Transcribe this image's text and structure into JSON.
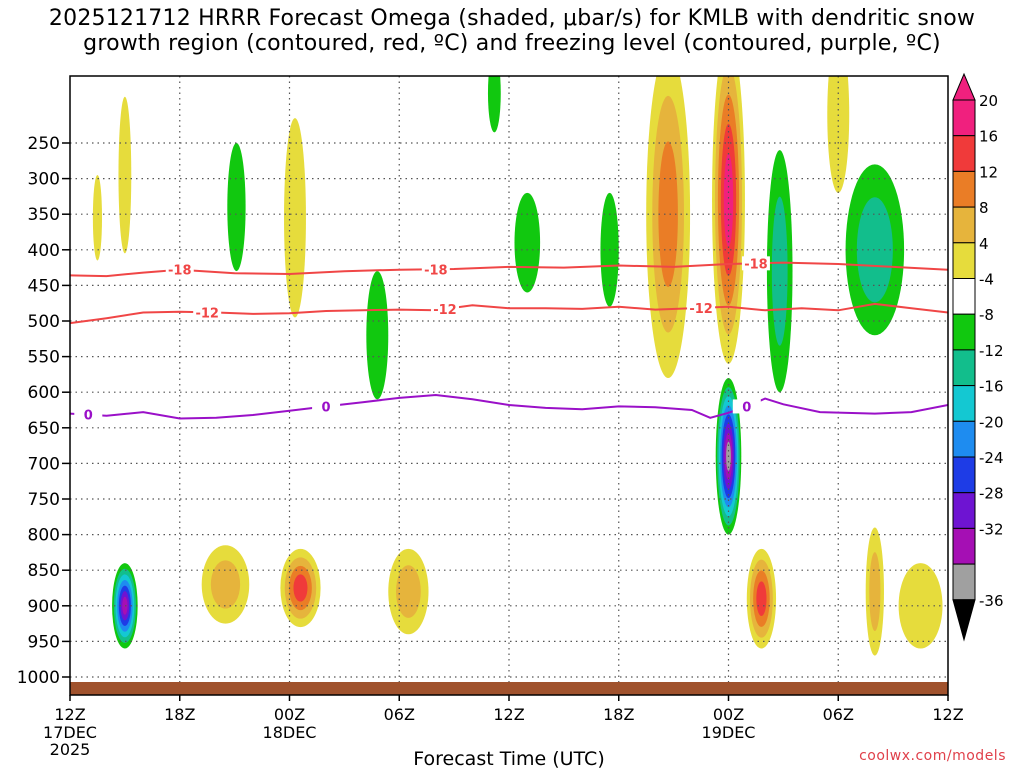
{
  "title_line1": "2025121712 HRRR Forecast Omega (shaded, μbar/s) for KMLB with dendritic snow",
  "title_line2": "growth region (contoured, red, ºC) and freezing level (contoured, purple, ºC)",
  "credit": "coolwx.com/models",
  "chart_data": {
    "type": "time-height cross section",
    "title": "2025121712 HRRR Forecast Omega (shaded, μbar/s) for KMLB with dendritic snow growth region (contoured, red, ºC) and freezing level (contoured, purple, ºC)",
    "xlabel": "Forecast Time (UTC)",
    "ylabel": "",
    "x_range_hours": [
      0,
      48
    ],
    "y_range_hPa": [
      1030,
      200
    ],
    "x_ticks": [
      {
        "h": 0,
        "label": "12Z",
        "sub1": "17DEC",
        "sub2": "2025"
      },
      {
        "h": 6,
        "label": "18Z",
        "sub1": "",
        "sub2": ""
      },
      {
        "h": 12,
        "label": "00Z",
        "sub1": "18DEC",
        "sub2": ""
      },
      {
        "h": 18,
        "label": "06Z",
        "sub1": "",
        "sub2": ""
      },
      {
        "h": 24,
        "label": "12Z",
        "sub1": "",
        "sub2": ""
      },
      {
        "h": 30,
        "label": "18Z",
        "sub1": "",
        "sub2": ""
      },
      {
        "h": 36,
        "label": "00Z",
        "sub1": "19DEC",
        "sub2": ""
      },
      {
        "h": 42,
        "label": "06Z",
        "sub1": "",
        "sub2": ""
      },
      {
        "h": 48,
        "label": "12Z",
        "sub1": "",
        "sub2": ""
      }
    ],
    "y_ticks": [
      {
        "p": 250,
        "label": "250"
      },
      {
        "p": 300,
        "label": "300"
      },
      {
        "p": 350,
        "label": "350"
      },
      {
        "p": 400,
        "label": "400"
      },
      {
        "p": 450,
        "label": "450"
      },
      {
        "p": 500,
        "label": "500"
      },
      {
        "p": 550,
        "label": "550"
      },
      {
        "p": 600,
        "label": "600"
      },
      {
        "p": 650,
        "label": "650"
      },
      {
        "p": 700,
        "label": "700"
      },
      {
        "p": 750,
        "label": "750"
      },
      {
        "p": 800,
        "label": "800"
      },
      {
        "p": 850,
        "label": "850"
      },
      {
        "p": 900,
        "label": "900"
      },
      {
        "p": 950,
        "label": "950"
      },
      {
        "p": 1000,
        "label": "1000"
      }
    ],
    "colorbar": {
      "unit": "μbar/s",
      "levels": [
        {
          "label": "20",
          "color": "#f0207e"
        },
        {
          "label": "16",
          "color": "#f03a3a"
        },
        {
          "label": "12",
          "color": "#ea7d26"
        },
        {
          "label": "8",
          "color": "#e6b43c"
        },
        {
          "label": "4",
          "color": "#e6dc3c"
        },
        {
          "label": "-4",
          "color": "#ffffff"
        },
        {
          "label": "-8",
          "color": "#11c80f"
        },
        {
          "label": "-12",
          "color": "#12be8c"
        },
        {
          "label": "-16",
          "color": "#14c8d2"
        },
        {
          "label": "-20",
          "color": "#1e8cf0"
        },
        {
          "label": "-24",
          "color": "#1e3ce6"
        },
        {
          "label": "-28",
          "color": "#6e14d2"
        },
        {
          "label": "-32",
          "color": "#a50fb4"
        },
        {
          "label": "-36",
          "color": "#a0a0a0"
        }
      ],
      "overflow_high_color": "#f0207e",
      "overflow_low_color": "#000000"
    },
    "contours": [
      {
        "name": "-18",
        "color": "#f04646",
        "label_positions_h": [
          6,
          20,
          37.5
        ],
        "points": [
          [
            0,
            436
          ],
          [
            2,
            437
          ],
          [
            4,
            432
          ],
          [
            6,
            428
          ],
          [
            9,
            433
          ],
          [
            12,
            434
          ],
          [
            15,
            430
          ],
          [
            18,
            428
          ],
          [
            21,
            427
          ],
          [
            24,
            424
          ],
          [
            27,
            425
          ],
          [
            30,
            422
          ],
          [
            33,
            424
          ],
          [
            36,
            420
          ],
          [
            39,
            418
          ],
          [
            42,
            420
          ],
          [
            45,
            424
          ],
          [
            48,
            428
          ]
        ]
      },
      {
        "name": "-12",
        "color": "#f04646",
        "label_positions_h": [
          7.5,
          20.5,
          34.5
        ],
        "points": [
          [
            0,
            503
          ],
          [
            2,
            496
          ],
          [
            4,
            488
          ],
          [
            6,
            487
          ],
          [
            8,
            488
          ],
          [
            10,
            490
          ],
          [
            12,
            489
          ],
          [
            14,
            486
          ],
          [
            16,
            485
          ],
          [
            18,
            484
          ],
          [
            20,
            485
          ],
          [
            22,
            478
          ],
          [
            24,
            482
          ],
          [
            26,
            482
          ],
          [
            28,
            483
          ],
          [
            30,
            480
          ],
          [
            32,
            484
          ],
          [
            34,
            482
          ],
          [
            36,
            480
          ],
          [
            38,
            485
          ],
          [
            40,
            482
          ],
          [
            42,
            485
          ],
          [
            44,
            476
          ],
          [
            46,
            482
          ],
          [
            48,
            488
          ]
        ]
      },
      {
        "name": "0",
        "color": "#9a10c8",
        "label_positions_h": [
          1,
          14,
          37
        ],
        "points": [
          [
            0,
            630
          ],
          [
            2,
            633
          ],
          [
            4,
            628
          ],
          [
            6,
            637
          ],
          [
            8,
            636
          ],
          [
            10,
            632
          ],
          [
            12,
            626
          ],
          [
            14,
            620
          ],
          [
            16,
            614
          ],
          [
            18,
            608
          ],
          [
            20,
            604
          ],
          [
            22,
            610
          ],
          [
            24,
            618
          ],
          [
            26,
            622
          ],
          [
            28,
            624
          ],
          [
            30,
            620
          ],
          [
            32,
            621
          ],
          [
            34,
            625
          ],
          [
            35,
            636
          ],
          [
            36,
            629
          ],
          [
            37,
            620
          ],
          [
            38,
            609
          ],
          [
            39,
            617
          ],
          [
            41,
            628
          ],
          [
            44,
            630
          ],
          [
            46,
            628
          ],
          [
            48,
            618
          ]
        ]
      }
    ],
    "omega_features": [
      {
        "h": 3.0,
        "p": 900,
        "dh": 0.7,
        "dp": 60,
        "levels": [
          "-8",
          "-12",
          "-16",
          "-20",
          "-24",
          "-28",
          "-32"
        ]
      },
      {
        "h": 1.5,
        "p": 355,
        "dh": 0.25,
        "dp": 60,
        "levels": [
          "4"
        ]
      },
      {
        "h": 3.0,
        "p": 295,
        "dh": 0.35,
        "dp": 110,
        "levels": [
          "4"
        ]
      },
      {
        "h": 8.5,
        "p": 870,
        "dh": 1.3,
        "dp": 55,
        "levels": [
          "4",
          "8"
        ]
      },
      {
        "h": 12.6,
        "p": 875,
        "dh": 1.1,
        "dp": 55,
        "levels": [
          "4",
          "8",
          "12",
          "16"
        ]
      },
      {
        "h": 12.3,
        "p": 355,
        "dh": 0.6,
        "dp": 140,
        "levels": [
          "4"
        ]
      },
      {
        "h": 9.1,
        "p": 340,
        "dh": 0.5,
        "dp": 90,
        "levels": [
          "-8"
        ]
      },
      {
        "h": 16.8,
        "p": 520,
        "dh": 0.6,
        "dp": 90,
        "levels": [
          "-8"
        ]
      },
      {
        "h": 18.5,
        "p": 880,
        "dh": 1.1,
        "dp": 60,
        "levels": [
          "4",
          "8"
        ]
      },
      {
        "h": 23.2,
        "p": 180,
        "dh": 0.35,
        "dp": 55,
        "levels": [
          "-8"
        ]
      },
      {
        "h": 25.0,
        "p": 390,
        "dh": 0.7,
        "dp": 70,
        "levels": [
          "-8"
        ]
      },
      {
        "h": 29.5,
        "p": 400,
        "dh": 0.5,
        "dp": 80,
        "levels": [
          "-8"
        ]
      },
      {
        "h": 32.7,
        "p": 350,
        "dh": 1.2,
        "dp": 230,
        "levels": [
          "4",
          "8",
          "12"
        ]
      },
      {
        "h": 36.0,
        "p": 330,
        "dh": 0.9,
        "dp": 230,
        "levels": [
          "4",
          "8",
          "12",
          "16",
          "20"
        ]
      },
      {
        "h": 36.0,
        "p": 690,
        "dh": 0.7,
        "dp": 110,
        "levels": [
          "-8",
          "-12",
          "-16",
          "-20",
          "-24",
          "-28",
          "-32",
          "-36"
        ]
      },
      {
        "h": 37.8,
        "p": 890,
        "dh": 0.8,
        "dp": 70,
        "levels": [
          "4",
          "8",
          "12",
          "16"
        ]
      },
      {
        "h": 38.8,
        "p": 430,
        "dh": 0.7,
        "dp": 170,
        "levels": [
          "-8",
          "-12"
        ]
      },
      {
        "h": 42.0,
        "p": 210,
        "dh": 0.6,
        "dp": 110,
        "levels": [
          "4"
        ]
      },
      {
        "h": 44.0,
        "p": 400,
        "dh": 1.6,
        "dp": 120,
        "levels": [
          "-8",
          "-12"
        ]
      },
      {
        "h": 44.0,
        "p": 880,
        "dh": 0.5,
        "dp": 90,
        "levels": [
          "4",
          "8"
        ]
      },
      {
        "h": 46.5,
        "p": 900,
        "dh": 1.2,
        "dp": 60,
        "levels": [
          "4"
        ]
      }
    ]
  }
}
